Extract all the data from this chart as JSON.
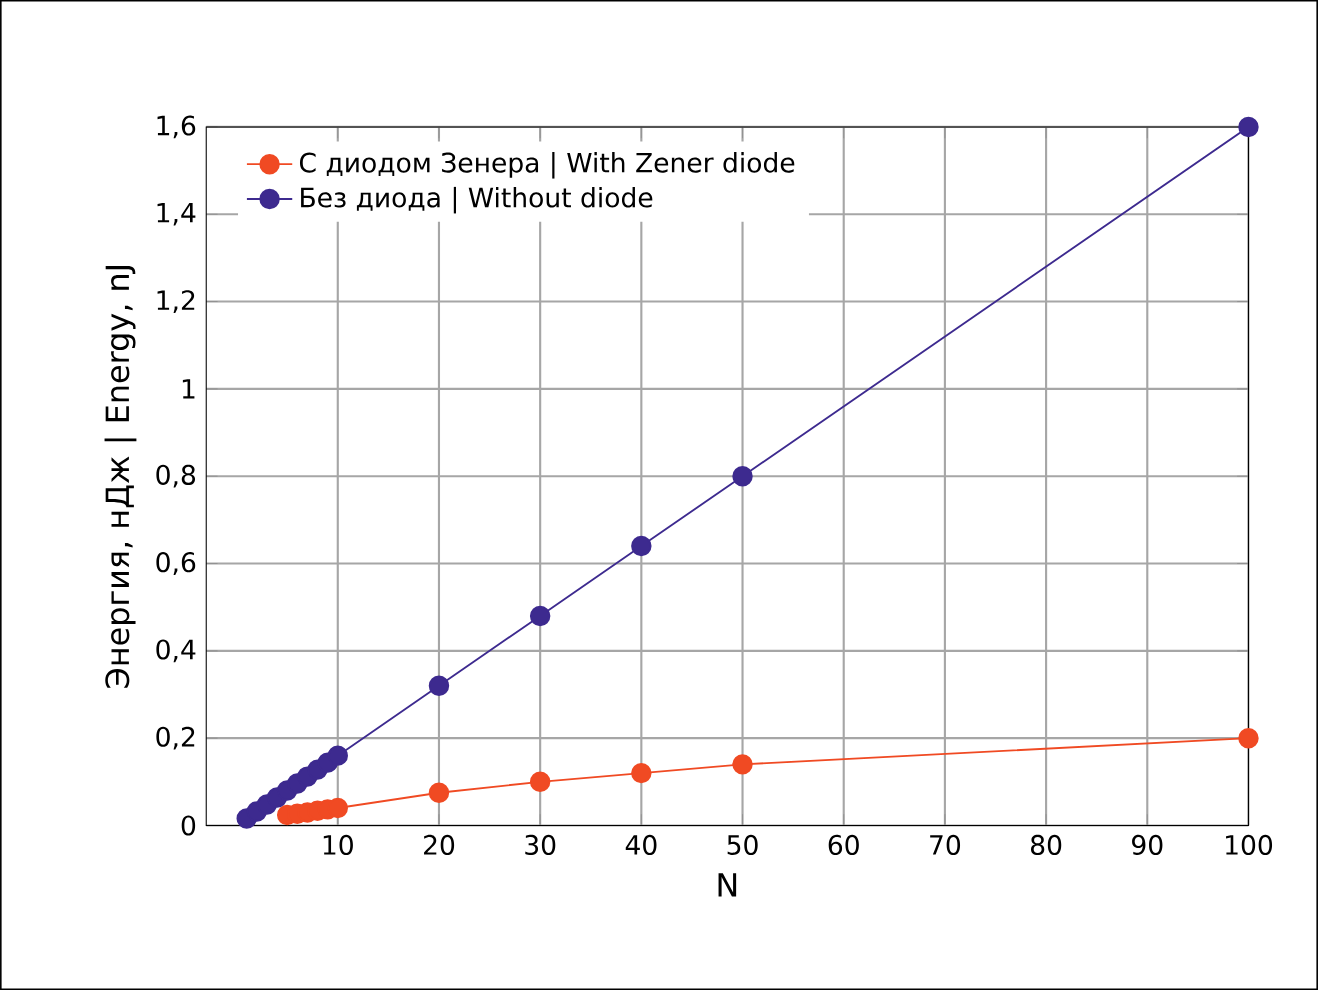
{
  "chart_data": {
    "type": "line",
    "xlabel": "N",
    "ylabel": "Энергия, нДж | Energy, nJ",
    "x": [
      1,
      2,
      3,
      4,
      5,
      6,
      7,
      8,
      9,
      10,
      20,
      30,
      40,
      50,
      100
    ],
    "series": [
      {
        "name": "С диодом Зенера | With Zener diode",
        "color": "#f04a23",
        "values": [
          null,
          null,
          null,
          null,
          0.024,
          0.027,
          0.03,
          0.034,
          0.037,
          0.04,
          0.075,
          0.1,
          0.12,
          0.14,
          0.2
        ]
      },
      {
        "name": "Без диода | Without diode",
        "color": "#3d2a8f",
        "values": [
          0.016,
          0.032,
          0.048,
          0.064,
          0.08,
          0.096,
          0.112,
          0.128,
          0.144,
          0.16,
          0.32,
          0.48,
          0.64,
          0.8,
          1.6
        ]
      }
    ],
    "xlim": [
      -3,
      100
    ],
    "xticks": [
      10,
      20,
      30,
      40,
      50,
      60,
      70,
      80,
      90,
      100
    ],
    "ylim": [
      0,
      1.6
    ],
    "yticks": [
      0,
      {
        "value": 0.2,
        "label": "0,2"
      },
      {
        "value": 0.4,
        "label": "0,4"
      },
      {
        "value": 0.6,
        "label": "0,6"
      },
      {
        "value": 0.8,
        "label": "0,8"
      },
      1,
      {
        "value": 1.2,
        "label": "1,2"
      },
      {
        "value": 1.4,
        "label": "1,4"
      },
      {
        "value": 1.6,
        "label": "1,6"
      }
    ],
    "grid": true,
    "legend": "top left",
    "marker": "circle",
    "line_style": "solid"
  }
}
